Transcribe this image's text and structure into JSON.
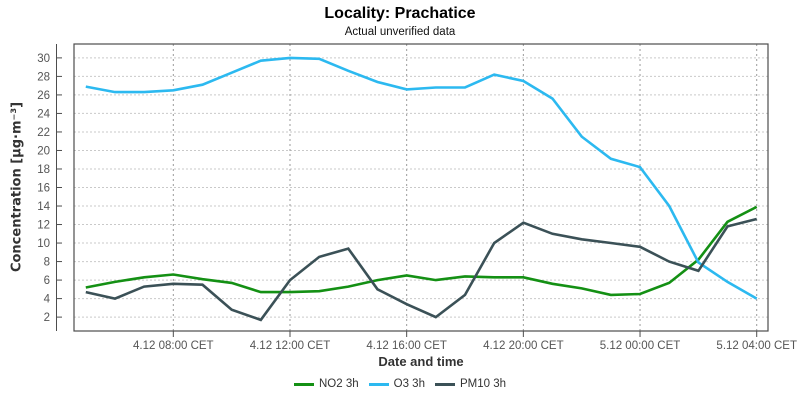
{
  "title": "Locality: Prachatice",
  "subtitle": "Actual unverified data",
  "y_axis": {
    "label": "Concentration [µg·m⁻³]",
    "ticks": [
      2,
      4,
      6,
      8,
      10,
      12,
      14,
      16,
      18,
      20,
      22,
      24,
      26,
      28,
      30
    ]
  },
  "x_axis": {
    "label": "Date and time",
    "tick_labels": [
      "4.12 08:00 CET",
      "4.12 12:00 CET",
      "4.12 16:00 CET",
      "4.12 20:00 CET",
      "5.12 00:00 CET",
      "5.12 04:00 CET"
    ],
    "tick_indices": [
      3,
      7,
      11,
      15,
      19,
      23
    ]
  },
  "chart_data": {
    "type": "line",
    "title": "Locality: Prachatice",
    "subtitle": "Actual unverified data",
    "xlabel": "Date and time",
    "ylabel": "Concentration [µg·m⁻³]",
    "ylim": [
      0.5,
      31.5
    ],
    "grid": true,
    "legend_position": "bottom",
    "x": [
      "4.12 05:00",
      "4.12 06:00",
      "4.12 07:00",
      "4.12 08:00",
      "4.12 09:00",
      "4.12 10:00",
      "4.12 11:00",
      "4.12 12:00",
      "4.12 13:00",
      "4.12 14:00",
      "4.12 15:00",
      "4.12 16:00",
      "4.12 17:00",
      "4.12 18:00",
      "4.12 19:00",
      "4.12 20:00",
      "4.12 21:00",
      "4.12 22:00",
      "4.12 23:00",
      "5.12 00:00",
      "5.12 01:00",
      "5.12 02:00",
      "5.12 03:00",
      "5.12 04:00"
    ],
    "series": [
      {
        "name": "NO2 3h",
        "color": "#149014",
        "values": [
          5.2,
          5.8,
          6.3,
          6.6,
          6.1,
          5.7,
          4.7,
          4.7,
          4.8,
          5.3,
          6.0,
          6.5,
          6.0,
          6.4,
          6.3,
          6.3,
          5.6,
          5.1,
          4.4,
          4.5,
          5.7,
          8.2,
          12.3,
          13.9
        ]
      },
      {
        "name": "O3 3h",
        "color": "#2cb9f0",
        "values": [
          26.9,
          26.3,
          26.3,
          26.5,
          27.1,
          28.4,
          29.7,
          30.0,
          29.9,
          28.6,
          27.4,
          26.6,
          26.8,
          26.8,
          28.2,
          27.5,
          25.6,
          21.5,
          19.1,
          18.2,
          14.0,
          7.9,
          5.8,
          4.0
        ]
      },
      {
        "name": "PM10 3h",
        "color": "#3b5157",
        "values": [
          4.7,
          4.0,
          5.3,
          5.6,
          5.5,
          2.8,
          1.7,
          6.0,
          8.5,
          9.4,
          5.0,
          3.4,
          2.0,
          4.4,
          10.0,
          12.2,
          11.0,
          10.4,
          10.0,
          9.6,
          8.0,
          7.0,
          11.8,
          12.6
        ]
      }
    ]
  },
  "colors": {
    "grid_h": "#c9c9c9",
    "grid_v": "#9a9a9a",
    "axis": "#4d4d4d",
    "tick_text": "#555555"
  }
}
